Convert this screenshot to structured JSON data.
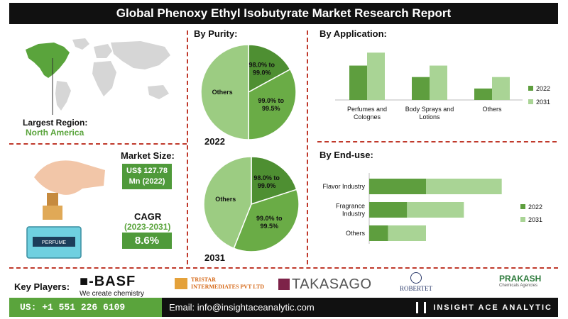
{
  "title": "Global Phenoxy Ethyl Isobutyrate Market Research Report",
  "region": {
    "label": "Largest Region:",
    "value": "North America"
  },
  "market_size": {
    "label": "Market Size:",
    "value_line1": "US$ 127.78",
    "value_line2": "Mn (2022)"
  },
  "cagr": {
    "label": "CAGR",
    "years": "(2023-2031)",
    "value": "8.6%"
  },
  "illustration_text": "PERFUME",
  "purity": {
    "title": "By Purity:",
    "year_2022": "2022",
    "year_2031": "2031",
    "slice_labels": {
      "a_line1": "98.0% to",
      "a_line2": "99.0%",
      "b_line1": "99.0% to",
      "b_line2": "99.5%",
      "others": "Others"
    }
  },
  "application": {
    "title": "By Application:"
  },
  "enduse": {
    "title": "By End-use:"
  },
  "chart_data": [
    {
      "type": "pie",
      "title": "By Purity:",
      "subtitle": "2022",
      "categories": [
        "98.0% to 99.0%",
        "99.0% to 99.5%",
        "Others"
      ],
      "values": [
        17,
        33,
        50
      ],
      "colors": [
        "#4e8f32",
        "#6aac46",
        "#9ccc82"
      ]
    },
    {
      "type": "pie",
      "title": "By Purity:",
      "subtitle": "2031",
      "categories": [
        "98.0% to 99.0%",
        "99.0% to 99.5%",
        "Others"
      ],
      "values": [
        20,
        36,
        44
      ],
      "colors": [
        "#4e8f32",
        "#6aac46",
        "#9ccc82"
      ]
    },
    {
      "type": "bar",
      "title": "By Application:",
      "categories": [
        "Perfumes and Colognes",
        "Body Sprays and Lotions",
        "Others"
      ],
      "series": [
        {
          "name": "2022",
          "values": [
            45,
            30,
            15
          ],
          "color": "#5e9e3e"
        },
        {
          "name": "2031",
          "values": [
            62,
            45,
            30
          ],
          "color": "#a9d495"
        }
      ],
      "ylim": [
        0,
        65
      ],
      "legend": "right"
    },
    {
      "type": "bar",
      "orientation": "horizontal",
      "stacked": true,
      "title": "By End-use:",
      "categories": [
        "Flavor Industry",
        "Fragrance Industry",
        "Others"
      ],
      "series": [
        {
          "name": "2022",
          "values": [
            60,
            40,
            20
          ],
          "color": "#5e9e3e"
        },
        {
          "name": "2031",
          "values": [
            80,
            60,
            40
          ],
          "color": "#a9d495"
        }
      ],
      "xlim": [
        0,
        150
      ],
      "legend": "right"
    }
  ],
  "key_players": {
    "label": "Key Players:",
    "basf_mark": "■-BASF",
    "basf_tag": "We create chemistry",
    "tristar_line1": "TRISTAR",
    "tristar_line2": "INTERMEDIATES PVT LTD",
    "takasago": "TAKASAGO",
    "robertet": "ROBERTET",
    "prakash": "PRAKASH",
    "prakash_sub": "Chemicals Agencies"
  },
  "footer": {
    "phone": "US: +1 551 226 6109",
    "email": "Email: info@insightaceanalytic.com",
    "brand": "INSIGHT ACE ANALYTIC"
  },
  "colors": {
    "accent": "#5aa43c",
    "dark": "#111111",
    "divider": "#c0392b"
  }
}
